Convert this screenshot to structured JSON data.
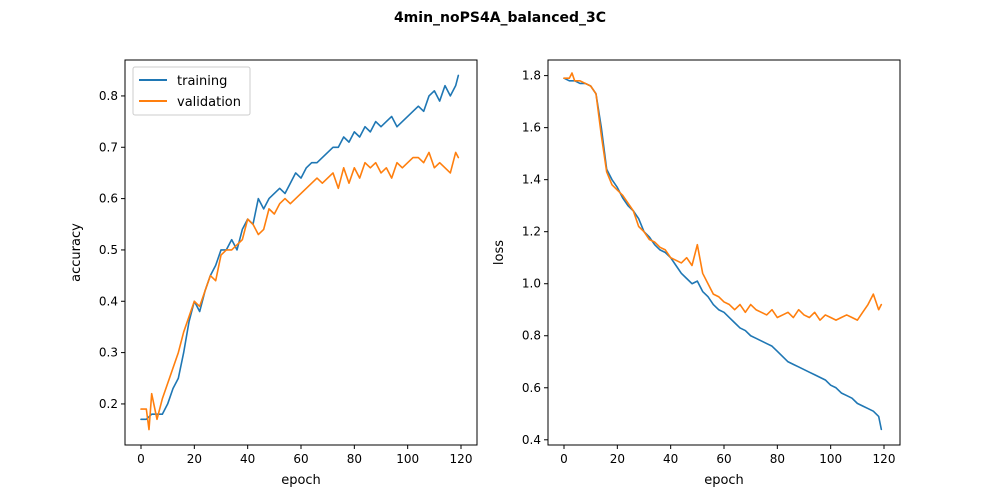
{
  "figure": {
    "title": "4min_noPS4A_balanced_3C"
  },
  "chart_data": [
    {
      "type": "line",
      "xlabel": "epoch",
      "ylabel": "accuracy",
      "xlim": [
        -6,
        126
      ],
      "ylim": [
        0.12,
        0.87
      ],
      "xticks": [
        0,
        20,
        40,
        60,
        80,
        100,
        120
      ],
      "yticks": [
        0.2,
        0.3,
        0.4,
        0.5,
        0.6,
        0.7,
        0.8
      ],
      "ytick_labels": [
        "0.2",
        "0.3",
        "0.4",
        "0.5",
        "0.6",
        "0.7",
        "0.8"
      ],
      "legend": "top-left",
      "series": [
        {
          "name": "training",
          "color": "#1f77b4",
          "x": [
            0,
            2,
            4,
            6,
            8,
            10,
            12,
            14,
            16,
            18,
            20,
            22,
            24,
            26,
            28,
            30,
            32,
            34,
            36,
            38,
            40,
            42,
            44,
            46,
            48,
            50,
            52,
            54,
            56,
            58,
            60,
            62,
            64,
            66,
            68,
            70,
            72,
            74,
            76,
            78,
            80,
            82,
            84,
            86,
            88,
            90,
            92,
            94,
            96,
            98,
            100,
            102,
            104,
            106,
            108,
            110,
            112,
            114,
            116,
            118,
            119
          ],
          "y": [
            0.17,
            0.17,
            0.18,
            0.18,
            0.18,
            0.2,
            0.23,
            0.25,
            0.3,
            0.36,
            0.4,
            0.38,
            0.42,
            0.45,
            0.47,
            0.5,
            0.5,
            0.52,
            0.5,
            0.54,
            0.56,
            0.55,
            0.6,
            0.58,
            0.6,
            0.61,
            0.62,
            0.61,
            0.63,
            0.65,
            0.64,
            0.66,
            0.67,
            0.67,
            0.68,
            0.69,
            0.7,
            0.7,
            0.72,
            0.71,
            0.73,
            0.72,
            0.74,
            0.73,
            0.75,
            0.74,
            0.75,
            0.76,
            0.74,
            0.75,
            0.76,
            0.77,
            0.78,
            0.77,
            0.8,
            0.81,
            0.79,
            0.82,
            0.8,
            0.82,
            0.84
          ]
        },
        {
          "name": "validation",
          "color": "#ff7f0e",
          "x": [
            0,
            2,
            3,
            4,
            6,
            8,
            10,
            12,
            14,
            16,
            18,
            20,
            22,
            24,
            26,
            28,
            30,
            32,
            34,
            36,
            38,
            40,
            42,
            44,
            46,
            48,
            50,
            52,
            54,
            56,
            58,
            60,
            62,
            64,
            66,
            68,
            70,
            72,
            74,
            76,
            78,
            80,
            82,
            84,
            86,
            88,
            90,
            92,
            94,
            96,
            98,
            100,
            102,
            104,
            106,
            108,
            110,
            112,
            114,
            116,
            118,
            119
          ],
          "y": [
            0.19,
            0.19,
            0.15,
            0.22,
            0.17,
            0.21,
            0.24,
            0.27,
            0.3,
            0.34,
            0.37,
            0.4,
            0.39,
            0.42,
            0.45,
            0.44,
            0.49,
            0.5,
            0.5,
            0.51,
            0.52,
            0.56,
            0.55,
            0.53,
            0.54,
            0.58,
            0.57,
            0.59,
            0.6,
            0.59,
            0.6,
            0.61,
            0.62,
            0.63,
            0.64,
            0.63,
            0.64,
            0.65,
            0.62,
            0.66,
            0.63,
            0.66,
            0.64,
            0.67,
            0.66,
            0.67,
            0.65,
            0.66,
            0.64,
            0.67,
            0.66,
            0.67,
            0.68,
            0.68,
            0.67,
            0.69,
            0.66,
            0.67,
            0.66,
            0.65,
            0.69,
            0.68
          ]
        }
      ]
    },
    {
      "type": "line",
      "xlabel": "epoch",
      "ylabel": "loss",
      "xlim": [
        -6,
        126
      ],
      "ylim": [
        0.38,
        1.86
      ],
      "xticks": [
        0,
        20,
        40,
        60,
        80,
        100,
        120
      ],
      "yticks": [
        0.4,
        0.6,
        0.8,
        1.0,
        1.2,
        1.4,
        1.6,
        1.8
      ],
      "ytick_labels": [
        "0.4",
        "0.6",
        "0.8",
        "1.0",
        "1.2",
        "1.4",
        "1.6",
        "1.8"
      ],
      "legend": "none",
      "series": [
        {
          "name": "training",
          "color": "#1f77b4",
          "x": [
            0,
            2,
            4,
            6,
            8,
            10,
            12,
            14,
            16,
            18,
            20,
            22,
            24,
            26,
            28,
            30,
            32,
            34,
            36,
            38,
            40,
            42,
            44,
            46,
            48,
            50,
            52,
            54,
            56,
            58,
            60,
            62,
            64,
            66,
            68,
            70,
            72,
            74,
            76,
            78,
            80,
            82,
            84,
            86,
            88,
            90,
            92,
            94,
            96,
            98,
            100,
            102,
            104,
            106,
            108,
            110,
            112,
            114,
            116,
            118,
            119
          ],
          "y": [
            1.79,
            1.78,
            1.78,
            1.77,
            1.77,
            1.76,
            1.73,
            1.6,
            1.44,
            1.4,
            1.37,
            1.33,
            1.3,
            1.28,
            1.25,
            1.2,
            1.18,
            1.15,
            1.13,
            1.12,
            1.1,
            1.07,
            1.04,
            1.02,
            1.0,
            1.01,
            0.97,
            0.95,
            0.92,
            0.9,
            0.89,
            0.87,
            0.85,
            0.83,
            0.82,
            0.8,
            0.79,
            0.78,
            0.77,
            0.76,
            0.74,
            0.72,
            0.7,
            0.69,
            0.68,
            0.67,
            0.66,
            0.65,
            0.64,
            0.63,
            0.61,
            0.6,
            0.58,
            0.57,
            0.56,
            0.54,
            0.53,
            0.52,
            0.51,
            0.49,
            0.44
          ]
        },
        {
          "name": "validation",
          "color": "#ff7f0e",
          "x": [
            0,
            2,
            3,
            4,
            6,
            8,
            10,
            12,
            14,
            16,
            18,
            20,
            22,
            24,
            26,
            28,
            30,
            32,
            34,
            36,
            38,
            40,
            42,
            44,
            46,
            48,
            50,
            52,
            54,
            56,
            58,
            60,
            62,
            64,
            66,
            68,
            70,
            72,
            74,
            76,
            78,
            80,
            82,
            84,
            86,
            88,
            90,
            92,
            94,
            96,
            98,
            100,
            102,
            104,
            106,
            108,
            110,
            112,
            114,
            116,
            118,
            119
          ],
          "y": [
            1.79,
            1.79,
            1.81,
            1.78,
            1.78,
            1.77,
            1.76,
            1.73,
            1.57,
            1.43,
            1.38,
            1.36,
            1.34,
            1.31,
            1.28,
            1.22,
            1.2,
            1.17,
            1.16,
            1.14,
            1.13,
            1.1,
            1.09,
            1.08,
            1.1,
            1.07,
            1.15,
            1.04,
            1.0,
            0.96,
            0.95,
            0.93,
            0.92,
            0.9,
            0.92,
            0.89,
            0.92,
            0.9,
            0.89,
            0.88,
            0.9,
            0.87,
            0.88,
            0.89,
            0.87,
            0.9,
            0.88,
            0.87,
            0.89,
            0.86,
            0.88,
            0.87,
            0.86,
            0.87,
            0.88,
            0.87,
            0.86,
            0.89,
            0.92,
            0.96,
            0.9,
            0.92
          ]
        }
      ]
    }
  ]
}
